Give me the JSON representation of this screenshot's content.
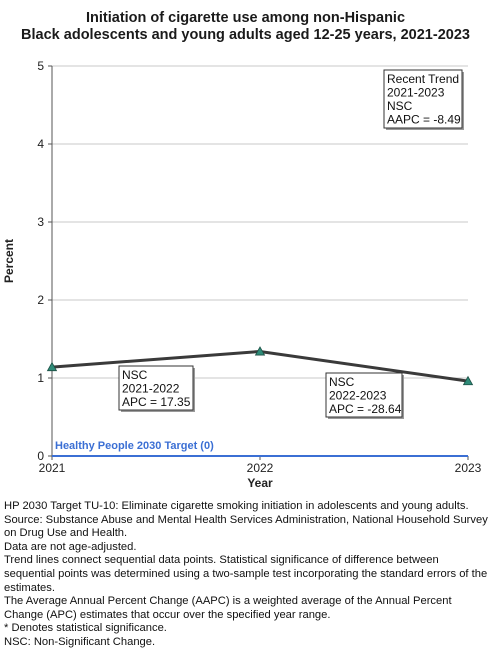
{
  "chart_data": {
    "type": "line",
    "title": [
      "Initiation of cigarette use among non-Hispanic",
      "Black adolescents and young adults aged 12-25 years, 2021-2023"
    ],
    "xlabel": "Year",
    "ylabel": "Percent",
    "x": [
      "2021",
      "2022",
      "2023"
    ],
    "ylim": [
      0,
      5
    ],
    "yticks": [
      "0",
      "1",
      "2",
      "3",
      "4",
      "5"
    ],
    "grid": true,
    "series": [
      {
        "values": [
          1.14,
          1.34,
          0.96
        ],
        "color": "#3a3a3a",
        "marker_color": "#2e8b78"
      }
    ],
    "target": {
      "label": "Healthy People 2030 Target (0)",
      "value": 0,
      "color": "#3b6fd4"
    },
    "annotations": [
      {
        "lines": [
          "Recent Trend",
          "2021-2023",
          "NSC",
          "AAPC = -8.49"
        ]
      },
      {
        "lines": [
          "NSC",
          "2021-2022",
          "APC = 17.35"
        ]
      },
      {
        "lines": [
          "NSC",
          "2022-2023",
          "APC = -28.64"
        ]
      }
    ]
  },
  "notes": [
    "HP 2030 Target TU-10: Eliminate cigarette smoking initiation in adolescents and young adults.",
    "Source: Substance Abuse and Mental Health Services Administration, National Household Survey on Drug Use and Health.",
    "Data are not age-adjusted.",
    "Trend lines connect sequential data points. Statistical significance of difference between sequential points was determined using a two-sample test incorporating the standard errors of the estimates.",
    "The Average Annual Percent Change (AAPC) is a weighted average of the Annual Percent Change (APC) estimates that occur over the specified year range.",
    "* Denotes statistical significance.",
    "NSC: Non-Significant Change."
  ]
}
